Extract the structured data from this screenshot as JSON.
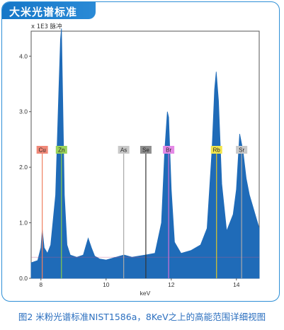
{
  "banner": {
    "title": "大米光谱标准"
  },
  "caption": "图2 米粉光谱标准NIST1586a，8KeV之上的高能范围详细视图",
  "colors": {
    "spectrum": "#1f6bb8",
    "frame": "#2e8fd6",
    "banner": "#1677c8",
    "caption": "#2b6fbf"
  },
  "chart_data": {
    "type": "area",
    "unit_label": "x 1E3  脉冲",
    "xlabel": "keV",
    "ylabel": "",
    "xlim": [
      7.7,
      14.7
    ],
    "ylim": [
      0.0,
      4.45
    ],
    "xticks": [
      "8",
      "10",
      "12",
      "14"
    ],
    "yticks": [
      "0.0",
      "1.0",
      "2.0",
      "3.0",
      "4.0"
    ],
    "grid": false,
    "series": [
      {
        "x": [
          7.7,
          7.9,
          8.0,
          8.04,
          8.1,
          8.2,
          8.3,
          8.45,
          8.55,
          8.6,
          8.63,
          8.67,
          8.72,
          8.8,
          8.9,
          9.1,
          9.3,
          9.45,
          9.55,
          9.65,
          9.8,
          10.0,
          10.3,
          10.55,
          10.8,
          11.2,
          11.5,
          11.7,
          11.8,
          11.88,
          11.92,
          12.0,
          12.1,
          12.3,
          12.6,
          12.9,
          13.1,
          13.25,
          13.33,
          13.38,
          13.45,
          13.55,
          13.7,
          13.9,
          14.0,
          14.1,
          14.2,
          14.3,
          14.4,
          14.5,
          14.6,
          14.7
        ],
        "y": [
          0.28,
          0.32,
          0.55,
          0.88,
          0.55,
          0.45,
          0.6,
          1.5,
          3.4,
          4.3,
          4.5,
          3.2,
          1.5,
          0.6,
          0.42,
          0.38,
          0.42,
          0.72,
          0.55,
          0.4,
          0.35,
          0.33,
          0.38,
          0.42,
          0.38,
          0.42,
          0.45,
          1.0,
          2.3,
          3.0,
          2.9,
          1.6,
          0.65,
          0.45,
          0.5,
          0.6,
          0.9,
          2.3,
          3.4,
          3.72,
          3.2,
          1.7,
          0.85,
          1.15,
          1.6,
          2.6,
          2.3,
          1.8,
          1.5,
          1.3,
          1.1,
          0.9
        ]
      }
    ],
    "markers": [
      {
        "label": "Cu",
        "x": 8.04,
        "color": "#f08878",
        "line": "#f08060"
      },
      {
        "label": "Zn",
        "x": 8.63,
        "color": "#9ad25a",
        "line": "#8acb4a"
      },
      {
        "label": "As",
        "x": 10.54,
        "color": "#c8c8c8",
        "line": "#aaaaaa"
      },
      {
        "label": "Se",
        "x": 11.22,
        "color": "#8e8e8e",
        "line": "#333333"
      },
      {
        "label": "Br",
        "x": 11.92,
        "color": "#e489e6",
        "line": "#d070d8"
      },
      {
        "label": "Rb",
        "x": 13.39,
        "color": "#f2e64e",
        "line": "#e0c828"
      },
      {
        "label": "Sr",
        "x": 14.16,
        "color": "#c8c8c8",
        "line": "#aaaaaa"
      }
    ]
  }
}
